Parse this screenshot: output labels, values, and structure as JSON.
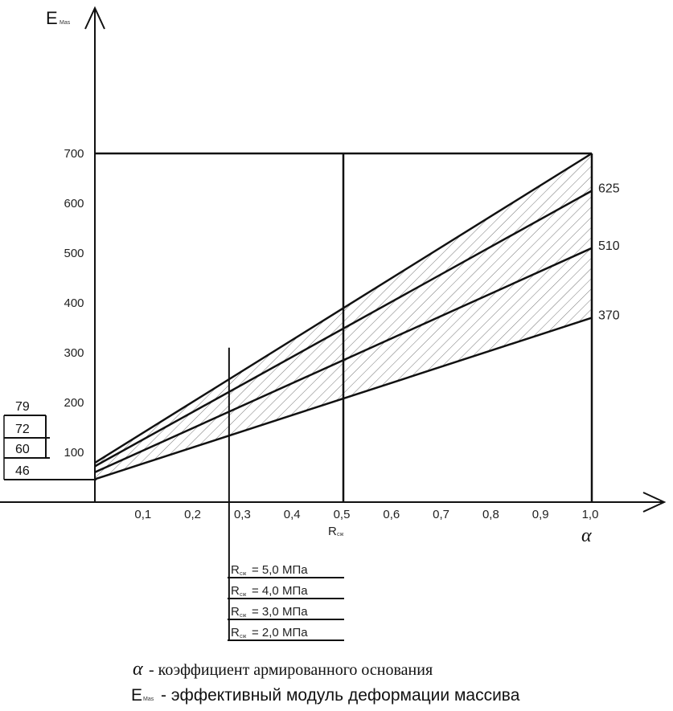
{
  "chart_data": {
    "type": "line",
    "y_axis_title": "E",
    "y_axis_sub": "Mas",
    "x_axis_title": "α",
    "x_ticks": [
      "0,1",
      "0,2",
      "0,3",
      "0,4",
      "0,5",
      "0,6",
      "0,7",
      "0,8",
      "0,9",
      "1,0"
    ],
    "y_ticks": [
      "100",
      "200",
      "300",
      "400",
      "500",
      "600",
      "700"
    ],
    "xlim": [
      0,
      1.0
    ],
    "ylim": [
      0,
      750
    ],
    "series": [
      {
        "name": "R = 5,0 МПа",
        "x": [
          0,
          1.0
        ],
        "y": [
          79,
          700
        ],
        "end_label": ""
      },
      {
        "name": "R = 4,0 МПа",
        "x": [
          0,
          1.0
        ],
        "y": [
          72,
          625
        ],
        "end_label": "625"
      },
      {
        "name": "R = 3,0 МПа",
        "x": [
          0,
          1.0
        ],
        "y": [
          60,
          510
        ],
        "end_label": "510"
      },
      {
        "name": "R = 2,0 МПа",
        "x": [
          0,
          1.0
        ],
        "y": [
          46,
          370
        ],
        "end_label": "370"
      }
    ],
    "reference_lines": {
      "horizontal_y": 700,
      "vertical_x": [
        0.5,
        1.0
      ],
      "selector_x": 0.27
    },
    "shaded_band": {
      "between_series": [
        0,
        3
      ],
      "pattern": "diagonal-hatch"
    },
    "intercept_boxes": [
      "79",
      "72",
      "60",
      "46"
    ],
    "x_marker_label": "R",
    "x_marker_sub": "сж",
    "legend_rows": [
      {
        "prefix": "R",
        "sub": "сж",
        "text": "= 5,0 МПа"
      },
      {
        "prefix": "R",
        "sub": "сж",
        "text": "= 4,0 МПа"
      },
      {
        "prefix": "R",
        "sub": "сж",
        "text": "= 3,0 МПа"
      },
      {
        "prefix": "R",
        "sub": "сж",
        "text": "= 2,0 МПа"
      }
    ]
  },
  "captions": {
    "line1_symbol": "α",
    "line1_text": "- коэффициент армированного основания",
    "line2_symbol": "E",
    "line2_sub": "Mas",
    "line2_text": "- эффективный модуль деформации массива"
  }
}
